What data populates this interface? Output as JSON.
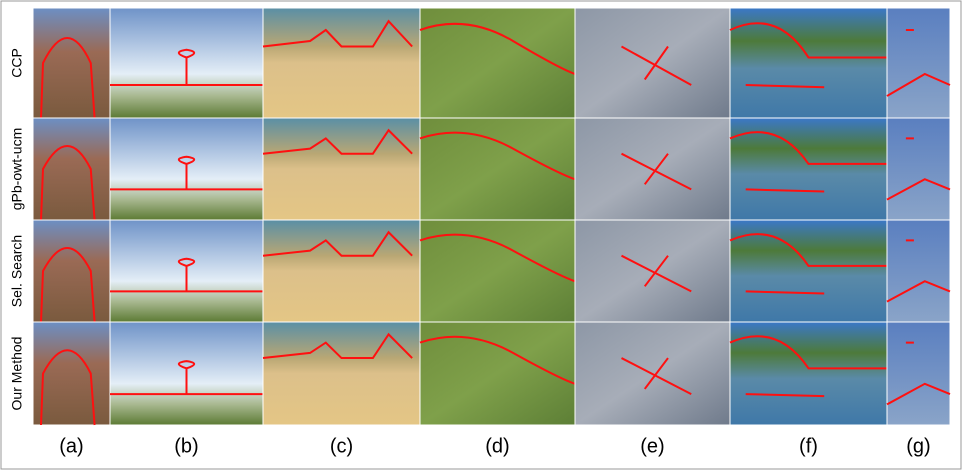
{
  "row_labels": [
    "CCP",
    "gPb-owt-ucm",
    "Sel. Search",
    "Our Method"
  ],
  "column_labels": [
    "(a)",
    "(b)",
    "(c)",
    "(d)",
    "(e)",
    "(f)",
    "(g)"
  ]
}
